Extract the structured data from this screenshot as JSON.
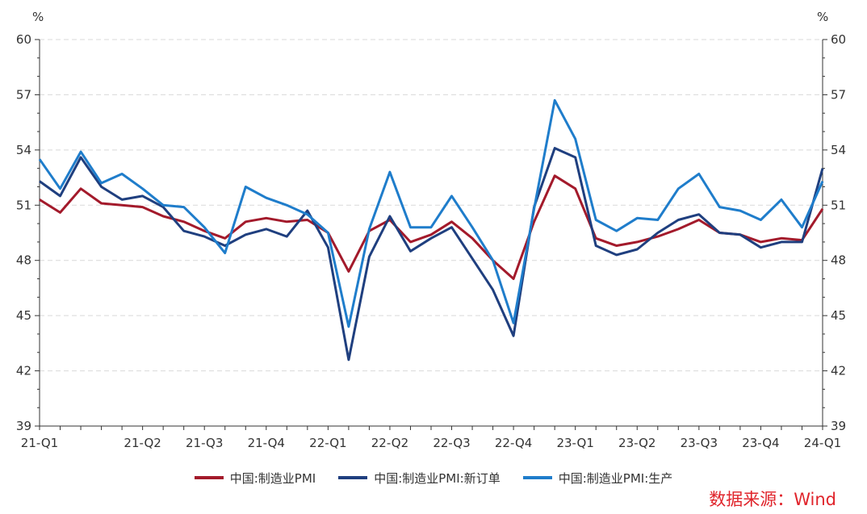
{
  "chart_data": {
    "type": "line",
    "title": "",
    "y_unit_left": "%",
    "y_unit_right": "%",
    "ylim": [
      39,
      60
    ],
    "y_ticks": [
      39,
      42,
      45,
      48,
      51,
      54,
      57,
      60
    ],
    "x_tick_labels": [
      "21-Q1",
      "21-Q2",
      "21-Q3",
      "21-Q4",
      "22-Q1",
      "22-Q2",
      "22-Q3",
      "22-Q4",
      "23-Q1",
      "23-Q2",
      "23-Q3",
      "23-Q4",
      "24-Q1"
    ],
    "x_tick_label_index": [
      0,
      5,
      8,
      11,
      14,
      17,
      20,
      23,
      26,
      29,
      32,
      35,
      38
    ],
    "x_count": 39,
    "grid": true,
    "legend_position": "bottom",
    "series": [
      {
        "name": "中国:制造业PMI",
        "color": "#a31a2b",
        "values": [
          51.3,
          50.6,
          51.9,
          51.1,
          51.0,
          50.9,
          50.4,
          50.1,
          49.6,
          49.2,
          50.1,
          50.3,
          50.1,
          50.2,
          49.5,
          47.4,
          49.6,
          50.2,
          49.0,
          49.4,
          50.1,
          49.2,
          48.0,
          47.0,
          50.1,
          52.6,
          51.9,
          49.2,
          48.8,
          49.0,
          49.3,
          49.7,
          50.2,
          49.5,
          49.4,
          49.0,
          49.2,
          49.1,
          50.8
        ]
      },
      {
        "name": "中国:制造业PMI:新订单",
        "color": "#1f3f7f",
        "values": [
          52.3,
          51.5,
          53.6,
          52.0,
          51.3,
          51.5,
          50.9,
          49.6,
          49.3,
          48.8,
          49.4,
          49.7,
          49.3,
          50.7,
          48.7,
          42.6,
          48.2,
          50.4,
          48.5,
          49.2,
          49.8,
          48.1,
          46.4,
          43.9,
          50.9,
          54.1,
          53.6,
          48.8,
          48.3,
          48.6,
          49.5,
          50.2,
          50.5,
          49.5,
          49.4,
          48.7,
          49.0,
          49.0,
          53.0
        ]
      },
      {
        "name": "中国:制造业PMI:生产",
        "color": "#1f7dcb",
        "values": [
          53.5,
          51.9,
          53.9,
          52.2,
          52.7,
          51.9,
          51.0,
          50.9,
          49.8,
          48.4,
          52.0,
          51.4,
          51.0,
          50.5,
          49.5,
          44.4,
          49.7,
          52.8,
          49.8,
          49.8,
          51.5,
          49.8,
          48.0,
          44.6,
          50.8,
          56.7,
          54.6,
          50.2,
          49.6,
          50.3,
          50.2,
          51.9,
          52.7,
          50.9,
          50.7,
          50.2,
          51.3,
          49.8,
          52.3
        ]
      }
    ]
  },
  "source_text": "数据来源：Wind"
}
